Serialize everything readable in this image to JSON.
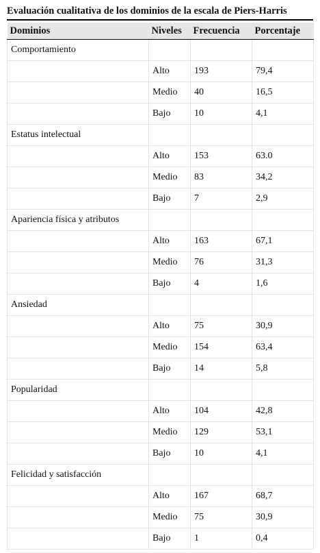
{
  "header": {
    "title": "Evaluación cualitativa de los dominios de la escala de Piers-Harris"
  },
  "table": {
    "columns": [
      "Dominios",
      "Niveles",
      "Frecuencia",
      "Porcentaje"
    ],
    "groups": [
      {
        "domain": "Comportamiento",
        "rows": [
          [
            "Alto",
            "193",
            "79,4"
          ],
          [
            "Medio",
            "40",
            "16,5"
          ],
          [
            "Bajo",
            "10",
            "4,1"
          ]
        ]
      },
      {
        "domain": "Estatus intelectual",
        "rows": [
          [
            "Alto",
            "153",
            "63.0"
          ],
          [
            "Medio",
            "83",
            "34,2"
          ],
          [
            "Bajo",
            "7",
            "2,9"
          ]
        ]
      },
      {
        "domain": "Apariencia física y atributos",
        "rows": [
          [
            "Alto",
            "163",
            "67,1"
          ],
          [
            "Medio",
            "76",
            "31,3"
          ],
          [
            "Bajo",
            "4",
            "1,6"
          ]
        ]
      },
      {
        "domain": "Ansiedad",
        "rows": [
          [
            "Alto",
            "75",
            "30,9"
          ],
          [
            "Medio",
            "154",
            "63,4"
          ],
          [
            "Bajo",
            "14",
            "5,8"
          ]
        ]
      },
      {
        "domain": "Popularidad",
        "rows": [
          [
            "Alto",
            "104",
            "42,8"
          ],
          [
            "Medio",
            "129",
            "53,1"
          ],
          [
            "Bajo",
            "10",
            "4,1"
          ]
        ]
      },
      {
        "domain": "Felicidad y satisfacción",
        "rows": [
          [
            "Alto",
            "167",
            "68,7"
          ],
          [
            "Medio",
            "75",
            "30,9"
          ],
          [
            "Bajo",
            "1",
            "0,4"
          ]
        ]
      }
    ]
  }
}
